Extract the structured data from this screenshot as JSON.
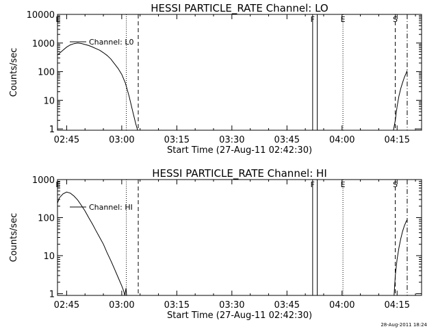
{
  "footer_timestamp": "28-Aug-2011 18:24",
  "chart_data": [
    {
      "type": "line",
      "title": "HESSI PARTICLE_RATE Channel: LO",
      "xlabel": "Start Time (27-Aug-11 02:42:30)",
      "ylabel": "Counts/sec",
      "yscale": "log",
      "ylim": [
        0.9,
        10000
      ],
      "xlim": [
        "02:42:30",
        "04:21:40"
      ],
      "x_ticks": [
        "02:45",
        "03:00",
        "03:15",
        "03:30",
        "03:45",
        "04:00",
        "04:15"
      ],
      "y_ticks": [
        "1",
        "10",
        "100",
        "1000",
        "10000"
      ],
      "legend": {
        "position": "top-left",
        "entries": [
          "Channel: L0"
        ]
      },
      "markers": [
        {
          "label": "E",
          "time": "02:42:40",
          "style": "none"
        },
        {
          "label": "",
          "time": "03:01:15",
          "style": "dotted"
        },
        {
          "label": "",
          "time": "03:04:30",
          "style": "dashed"
        },
        {
          "label": "F",
          "time": "03:52:00",
          "style": "solid"
        },
        {
          "label": "",
          "time": "03:53:15",
          "style": "solid"
        },
        {
          "label": "E",
          "time": "04:00:15",
          "style": "dotted"
        },
        {
          "label": "S",
          "time": "04:14:30",
          "style": "dashed"
        },
        {
          "label": "",
          "time": "04:17:45",
          "style": "dashdot"
        }
      ],
      "series": [
        {
          "name": "Channel: L0",
          "segments": [
            [
              [
                "02:42:30",
                380
              ],
              [
                "02:44:00",
                560
              ],
              [
                "02:45:00",
                720
              ],
              [
                "02:46:00",
                860
              ],
              [
                "02:47:00",
                950
              ],
              [
                "02:48:00",
                1000
              ],
              [
                "02:49:00",
                960
              ],
              [
                "02:50:00",
                890
              ],
              [
                "02:51:00",
                820
              ],
              [
                "02:52:00",
                730
              ],
              [
                "02:53:00",
                640
              ],
              [
                "02:54:00",
                560
              ],
              [
                "02:55:00",
                460
              ],
              [
                "02:56:00",
                370
              ],
              [
                "02:57:00",
                280
              ],
              [
                "02:58:00",
                190
              ],
              [
                "02:59:00",
                130
              ],
              [
                "03:00:00",
                80
              ],
              [
                "03:01:00",
                40
              ],
              [
                "03:02:00",
                14
              ],
              [
                "03:03:00",
                4
              ],
              [
                "03:03:50",
                1.5
              ],
              [
                "03:04:20",
                0.9
              ]
            ],
            [
              [
                "04:14:00",
                0.9
              ],
              [
                "04:14:30",
                2
              ],
              [
                "04:15:00",
                6
              ],
              [
                "04:15:30",
                14
              ],
              [
                "04:16:00",
                26
              ],
              [
                "04:16:30",
                42
              ],
              [
                "04:17:00",
                65
              ],
              [
                "04:17:30",
                90
              ],
              [
                "04:17:45",
                110
              ]
            ]
          ]
        }
      ]
    },
    {
      "type": "line",
      "title": "HESSI PARTICLE_RATE Channel: HI",
      "xlabel": "Start Time (27-Aug-11 02:42:30)",
      "ylabel": "Counts/sec",
      "yscale": "log",
      "ylim": [
        0.9,
        1000
      ],
      "xlim": [
        "02:42:30",
        "04:21:40"
      ],
      "x_ticks": [
        "02:45",
        "03:00",
        "03:15",
        "03:30",
        "03:45",
        "04:00",
        "04:15"
      ],
      "y_ticks": [
        "1",
        "10",
        "100",
        "1000"
      ],
      "legend": {
        "position": "top-left",
        "entries": [
          "Channel: HI"
        ]
      },
      "markers": [
        {
          "label": "E",
          "time": "02:42:40",
          "style": "none"
        },
        {
          "label": "",
          "time": "03:01:15",
          "style": "dotted"
        },
        {
          "label": "",
          "time": "03:04:30",
          "style": "dashed"
        },
        {
          "label": "F",
          "time": "03:52:00",
          "style": "solid"
        },
        {
          "label": "",
          "time": "03:53:15",
          "style": "solid"
        },
        {
          "label": "E",
          "time": "04:00:15",
          "style": "dotted"
        },
        {
          "label": "S",
          "time": "04:14:30",
          "style": "dashed"
        },
        {
          "label": "",
          "time": "04:17:45",
          "style": "dashdot"
        }
      ],
      "series": [
        {
          "name": "Channel: HI",
          "segments": [
            [
              [
                "02:42:30",
                240
              ],
              [
                "02:43:00",
                330
              ],
              [
                "02:44:00",
                420
              ],
              [
                "02:45:00",
                470
              ],
              [
                "02:46:00",
                440
              ],
              [
                "02:47:00",
                370
              ],
              [
                "02:48:00",
                290
              ],
              [
                "02:49:00",
                210
              ],
              [
                "02:50:00",
                150
              ],
              [
                "02:51:00",
                100
              ],
              [
                "02:52:00",
                68
              ],
              [
                "02:53:00",
                45
              ],
              [
                "02:54:00",
                30
              ],
              [
                "02:55:00",
                20
              ],
              [
                "02:56:00",
                12
              ],
              [
                "02:57:00",
                7.5
              ],
              [
                "02:58:00",
                4.5
              ],
              [
                "02:59:00",
                2.7
              ],
              [
                "03:00:00",
                1.6
              ],
              [
                "03:00:30",
                1.2
              ],
              [
                "03:00:50",
                0.9
              ],
              [
                "03:01:10",
                1.4
              ],
              [
                "03:01:20",
                0.9
              ]
            ],
            [
              [
                "04:14:10",
                0.9
              ],
              [
                "04:14:30",
                3
              ],
              [
                "04:15:00",
                8
              ],
              [
                "04:15:30",
                16
              ],
              [
                "04:16:00",
                28
              ],
              [
                "04:16:30",
                44
              ],
              [
                "04:17:00",
                62
              ],
              [
                "04:17:30",
                80
              ],
              [
                "04:17:45",
                88
              ]
            ]
          ]
        }
      ]
    }
  ]
}
